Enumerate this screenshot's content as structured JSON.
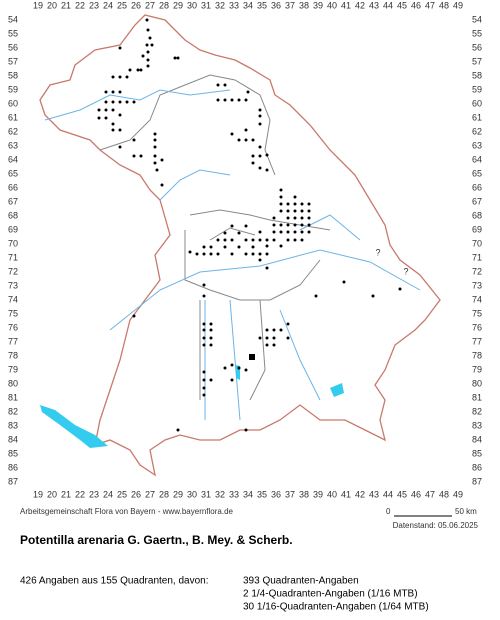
{
  "map": {
    "x_labels": [
      "19",
      "20",
      "21",
      "22",
      "23",
      "24",
      "25",
      "26",
      "27",
      "28",
      "29",
      "30",
      "31",
      "32",
      "33",
      "34",
      "35",
      "36",
      "37",
      "38",
      "39",
      "40",
      "41",
      "42",
      "43",
      "44",
      "45",
      "46",
      "47",
      "48",
      "49"
    ],
    "y_labels": [
      "54",
      "55",
      "56",
      "57",
      "58",
      "59",
      "60",
      "61",
      "62",
      "63",
      "64",
      "65",
      "66",
      "67",
      "68",
      "69",
      "70",
      "71",
      "72",
      "73",
      "74",
      "75",
      "76",
      "77",
      "78",
      "79",
      "80",
      "81",
      "82",
      "83",
      "84",
      "85",
      "86",
      "87"
    ],
    "unknown_marks": [
      "?",
      "?"
    ],
    "credit": "Arbeitsgemeinschaft Flora von Bayern - www.bayernflora.de",
    "scale": {
      "start": "0",
      "end": "50 km"
    },
    "date": "Datenstand: 05.06.2025",
    "title": "Potentilla arenaria G. Gaertn., B. Mey. & Scherb.",
    "summary": "426 Angaben aus 155 Quadranten, davon:",
    "breakdown": [
      "393 Quadranten-Angaben",
      "2 1/4-Quadranten-Angaben (1/16 MTB)",
      "30 1/16-Quadranten-Angaben (1/64 MTB)"
    ]
  }
}
